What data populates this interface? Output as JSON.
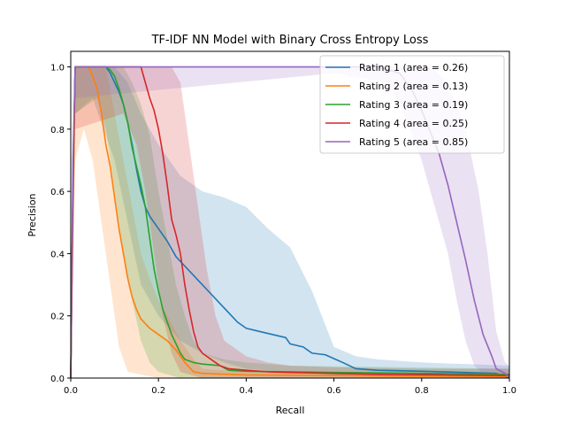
{
  "chart_data": {
    "type": "line",
    "title": "TF-IDF NN Model with Binary Cross Entropy Loss",
    "xlabel": "Recall",
    "ylabel": "Precision",
    "xlim": [
      0,
      1
    ],
    "ylim": [
      0,
      1.05
    ],
    "xticks": [
      "0.0",
      "0.2",
      "0.4",
      "0.6",
      "0.8",
      "1.0"
    ],
    "yticks": [
      "0.0",
      "0.2",
      "0.4",
      "0.6",
      "0.8",
      "1.0"
    ],
    "legend_position": "top-right",
    "grid": false,
    "series": [
      {
        "name": "Rating 1 (area = 0.26)",
        "color": "#1f77b4",
        "points": [
          [
            0,
            0
          ],
          [
            0.005,
            0.6
          ],
          [
            0.01,
            1.0
          ],
          [
            0.05,
            1.0
          ],
          [
            0.08,
            1.0
          ],
          [
            0.09,
            0.98
          ],
          [
            0.1,
            0.95
          ],
          [
            0.11,
            0.92
          ],
          [
            0.12,
            0.88
          ],
          [
            0.13,
            0.82
          ],
          [
            0.14,
            0.75
          ],
          [
            0.15,
            0.67
          ],
          [
            0.16,
            0.6
          ],
          [
            0.17,
            0.55
          ],
          [
            0.18,
            0.52
          ],
          [
            0.2,
            0.48
          ],
          [
            0.22,
            0.44
          ],
          [
            0.24,
            0.39
          ],
          [
            0.26,
            0.36
          ],
          [
            0.28,
            0.33
          ],
          [
            0.3,
            0.3
          ],
          [
            0.32,
            0.27
          ],
          [
            0.34,
            0.24
          ],
          [
            0.36,
            0.21
          ],
          [
            0.38,
            0.18
          ],
          [
            0.4,
            0.16
          ],
          [
            0.43,
            0.15
          ],
          [
            0.46,
            0.14
          ],
          [
            0.49,
            0.13
          ],
          [
            0.5,
            0.11
          ],
          [
            0.53,
            0.1
          ],
          [
            0.55,
            0.08
          ],
          [
            0.58,
            0.075
          ],
          [
            0.62,
            0.05
          ],
          [
            0.65,
            0.03
          ],
          [
            0.7,
            0.025
          ],
          [
            0.8,
            0.022
          ],
          [
            0.9,
            0.018
          ],
          [
            0.97,
            0.015
          ],
          [
            1.0,
            0.0
          ]
        ],
        "band_upper": [
          [
            0,
            0
          ],
          [
            0.01,
            1.0
          ],
          [
            0.1,
            1.0
          ],
          [
            0.13,
            0.95
          ],
          [
            0.16,
            0.85
          ],
          [
            0.2,
            0.75
          ],
          [
            0.25,
            0.65
          ],
          [
            0.3,
            0.6
          ],
          [
            0.35,
            0.58
          ],
          [
            0.4,
            0.55
          ],
          [
            0.45,
            0.48
          ],
          [
            0.5,
            0.42
          ],
          [
            0.55,
            0.28
          ],
          [
            0.6,
            0.1
          ],
          [
            0.65,
            0.07
          ],
          [
            0.7,
            0.06
          ],
          [
            0.8,
            0.05
          ],
          [
            0.9,
            0.045
          ],
          [
            1.0,
            0.04
          ]
        ],
        "band_lower": [
          [
            0,
            0
          ],
          [
            0.01,
            0.85
          ],
          [
            0.05,
            0.9
          ],
          [
            0.1,
            0.7
          ],
          [
            0.13,
            0.5
          ],
          [
            0.16,
            0.3
          ],
          [
            0.2,
            0.2
          ],
          [
            0.25,
            0.12
          ],
          [
            0.3,
            0.08
          ],
          [
            0.35,
            0.05
          ],
          [
            0.4,
            0.03
          ],
          [
            0.5,
            0.02
          ],
          [
            0.6,
            0.01
          ],
          [
            0.8,
            0.005
          ],
          [
            1.0,
            0.0
          ]
        ]
      },
      {
        "name": "Rating 2 (area = 0.13)",
        "color": "#ff7f0e",
        "points": [
          [
            0,
            0
          ],
          [
            0.005,
            0.5
          ],
          [
            0.01,
            1.0
          ],
          [
            0.04,
            1.0
          ],
          [
            0.05,
            0.97
          ],
          [
            0.06,
            0.93
          ],
          [
            0.07,
            0.85
          ],
          [
            0.08,
            0.75
          ],
          [
            0.09,
            0.68
          ],
          [
            0.1,
            0.58
          ],
          [
            0.11,
            0.48
          ],
          [
            0.12,
            0.4
          ],
          [
            0.13,
            0.32
          ],
          [
            0.14,
            0.26
          ],
          [
            0.15,
            0.22
          ],
          [
            0.16,
            0.19
          ],
          [
            0.18,
            0.16
          ],
          [
            0.2,
            0.14
          ],
          [
            0.22,
            0.12
          ],
          [
            0.24,
            0.09
          ],
          [
            0.26,
            0.05
          ],
          [
            0.28,
            0.02
          ],
          [
            0.3,
            0.015
          ],
          [
            0.4,
            0.01
          ],
          [
            0.6,
            0.008
          ],
          [
            0.8,
            0.006
          ],
          [
            1.0,
            0.005
          ]
        ],
        "band_upper": [
          [
            0,
            0
          ],
          [
            0.01,
            1.0
          ],
          [
            0.08,
            1.0
          ],
          [
            0.1,
            0.85
          ],
          [
            0.12,
            0.7
          ],
          [
            0.14,
            0.55
          ],
          [
            0.16,
            0.4
          ],
          [
            0.18,
            0.32
          ],
          [
            0.2,
            0.25
          ],
          [
            0.22,
            0.2
          ],
          [
            0.25,
            0.12
          ],
          [
            0.28,
            0.06
          ],
          [
            0.3,
            0.03
          ],
          [
            0.4,
            0.02
          ],
          [
            1.0,
            0.01
          ]
        ],
        "band_lower": [
          [
            0,
            0
          ],
          [
            0.01,
            0.7
          ],
          [
            0.03,
            0.8
          ],
          [
            0.05,
            0.7
          ],
          [
            0.07,
            0.5
          ],
          [
            0.09,
            0.3
          ],
          [
            0.11,
            0.1
          ],
          [
            0.13,
            0.02
          ],
          [
            0.2,
            0.0
          ],
          [
            1.0,
            0.0
          ]
        ]
      },
      {
        "name": "Rating 3 (area = 0.19)",
        "color": "#2ca02c",
        "points": [
          [
            0,
            0
          ],
          [
            0.005,
            0.6
          ],
          [
            0.01,
            1.0
          ],
          [
            0.08,
            1.0
          ],
          [
            0.09,
            0.99
          ],
          [
            0.1,
            0.97
          ],
          [
            0.11,
            0.93
          ],
          [
            0.12,
            0.88
          ],
          [
            0.13,
            0.82
          ],
          [
            0.14,
            0.74
          ],
          [
            0.15,
            0.68
          ],
          [
            0.16,
            0.62
          ],
          [
            0.17,
            0.55
          ],
          [
            0.18,
            0.45
          ],
          [
            0.19,
            0.35
          ],
          [
            0.2,
            0.28
          ],
          [
            0.21,
            0.22
          ],
          [
            0.22,
            0.18
          ],
          [
            0.23,
            0.14
          ],
          [
            0.24,
            0.11
          ],
          [
            0.25,
            0.08
          ],
          [
            0.26,
            0.06
          ],
          [
            0.28,
            0.05
          ],
          [
            0.3,
            0.045
          ],
          [
            0.34,
            0.04
          ],
          [
            0.36,
            0.025
          ],
          [
            0.4,
            0.022
          ],
          [
            0.5,
            0.02
          ],
          [
            0.6,
            0.018
          ],
          [
            0.8,
            0.015
          ],
          [
            1.0,
            0.012
          ]
        ],
        "band_upper": [
          [
            0,
            0
          ],
          [
            0.01,
            1.0
          ],
          [
            0.12,
            1.0
          ],
          [
            0.14,
            0.95
          ],
          [
            0.16,
            0.88
          ],
          [
            0.18,
            0.78
          ],
          [
            0.2,
            0.6
          ],
          [
            0.22,
            0.45
          ],
          [
            0.24,
            0.3
          ],
          [
            0.26,
            0.2
          ],
          [
            0.28,
            0.12
          ],
          [
            0.3,
            0.08
          ],
          [
            0.35,
            0.06
          ],
          [
            0.4,
            0.05
          ],
          [
            0.5,
            0.04
          ],
          [
            1.0,
            0.03
          ]
        ],
        "band_lower": [
          [
            0,
            0
          ],
          [
            0.01,
            0.85
          ],
          [
            0.06,
            0.9
          ],
          [
            0.08,
            0.8
          ],
          [
            0.1,
            0.6
          ],
          [
            0.12,
            0.4
          ],
          [
            0.14,
            0.25
          ],
          [
            0.16,
            0.12
          ],
          [
            0.18,
            0.05
          ],
          [
            0.2,
            0.02
          ],
          [
            0.25,
            0.0
          ],
          [
            1.0,
            0.0
          ]
        ]
      },
      {
        "name": "Rating 4 (area = 0.25)",
        "color": "#d62728",
        "points": [
          [
            0,
            0
          ],
          [
            0.005,
            0.6
          ],
          [
            0.01,
            1.0
          ],
          [
            0.16,
            1.0
          ],
          [
            0.17,
            0.95
          ],
          [
            0.18,
            0.9
          ],
          [
            0.19,
            0.86
          ],
          [
            0.2,
            0.8
          ],
          [
            0.21,
            0.72
          ],
          [
            0.22,
            0.62
          ],
          [
            0.23,
            0.51
          ],
          [
            0.24,
            0.46
          ],
          [
            0.25,
            0.4
          ],
          [
            0.26,
            0.3
          ],
          [
            0.27,
            0.22
          ],
          [
            0.28,
            0.15
          ],
          [
            0.29,
            0.1
          ],
          [
            0.3,
            0.08
          ],
          [
            0.32,
            0.06
          ],
          [
            0.34,
            0.04
          ],
          [
            0.36,
            0.03
          ],
          [
            0.4,
            0.025
          ],
          [
            0.45,
            0.02
          ],
          [
            0.5,
            0.018
          ],
          [
            0.6,
            0.015
          ],
          [
            0.7,
            0.012
          ],
          [
            0.85,
            0.01
          ],
          [
            1.0,
            0.008
          ]
        ],
        "band_upper": [
          [
            0,
            0
          ],
          [
            0.01,
            1.0
          ],
          [
            0.23,
            1.0
          ],
          [
            0.25,
            0.95
          ],
          [
            0.27,
            0.75
          ],
          [
            0.29,
            0.55
          ],
          [
            0.31,
            0.35
          ],
          [
            0.33,
            0.2
          ],
          [
            0.35,
            0.12
          ],
          [
            0.4,
            0.07
          ],
          [
            0.45,
            0.05
          ],
          [
            0.5,
            0.04
          ],
          [
            0.6,
            0.035
          ],
          [
            0.8,
            0.03
          ],
          [
            1.0,
            0.03
          ]
        ],
        "band_lower": [
          [
            0,
            0
          ],
          [
            0.01,
            0.8
          ],
          [
            0.12,
            0.85
          ],
          [
            0.15,
            0.75
          ],
          [
            0.17,
            0.6
          ],
          [
            0.19,
            0.4
          ],
          [
            0.21,
            0.2
          ],
          [
            0.23,
            0.08
          ],
          [
            0.25,
            0.02
          ],
          [
            0.3,
            0.0
          ],
          [
            1.0,
            0.0
          ]
        ]
      },
      {
        "name": "Rating 5 (area = 0.85)",
        "color": "#9467bd",
        "points": [
          [
            0,
            0
          ],
          [
            0.005,
            0.7
          ],
          [
            0.01,
            1.0
          ],
          [
            0.7,
            1.0
          ],
          [
            0.75,
            0.98
          ],
          [
            0.78,
            0.92
          ],
          [
            0.8,
            0.86
          ],
          [
            0.82,
            0.79
          ],
          [
            0.84,
            0.72
          ],
          [
            0.86,
            0.62
          ],
          [
            0.88,
            0.5
          ],
          [
            0.9,
            0.38
          ],
          [
            0.92,
            0.25
          ],
          [
            0.94,
            0.14
          ],
          [
            0.96,
            0.07
          ],
          [
            0.97,
            0.03
          ],
          [
            0.99,
            0.015
          ],
          [
            1.0,
            0.0
          ]
        ],
        "band_upper": [
          [
            0,
            0
          ],
          [
            0.01,
            1.0
          ],
          [
            0.82,
            1.0
          ],
          [
            0.86,
            0.95
          ],
          [
            0.9,
            0.8
          ],
          [
            0.93,
            0.6
          ],
          [
            0.95,
            0.4
          ],
          [
            0.97,
            0.15
          ],
          [
            0.99,
            0.05
          ],
          [
            1.0,
            0.04
          ]
        ],
        "band_lower": [
          [
            0,
            0
          ],
          [
            0.01,
            0.9
          ],
          [
            0.6,
            0.98
          ],
          [
            0.72,
            0.95
          ],
          [
            0.76,
            0.85
          ],
          [
            0.8,
            0.7
          ],
          [
            0.83,
            0.55
          ],
          [
            0.86,
            0.4
          ],
          [
            0.88,
            0.25
          ],
          [
            0.9,
            0.12
          ],
          [
            0.92,
            0.04
          ],
          [
            0.95,
            0.0
          ],
          [
            1.0,
            0.0
          ]
        ]
      }
    ]
  }
}
